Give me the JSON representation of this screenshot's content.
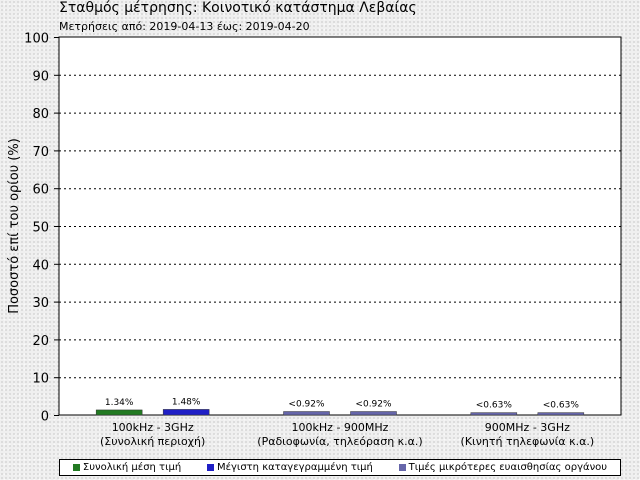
{
  "header": {
    "title": "Σταθμός μέτρησης: Κοινοτικό κατάστημα Λεβαίας",
    "subtitle": "Μετρήσεις από: 2019-04-13 έως: 2019-04-20"
  },
  "legend": {
    "items": [
      {
        "label": "Συνολική μέση τιμή",
        "color": "#227a22"
      },
      {
        "label": "Μέγιστη καταγεγραμμένη τιμή",
        "color": "#1f1fc6"
      },
      {
        "label": "Τιμές μικρότερες ευαισθησίας οργάνου",
        "color": "#6666aa"
      }
    ]
  },
  "chart_data": {
    "type": "bar",
    "title": "",
    "ylabel": "Ποσοστό επί του ορίου (%)",
    "ylim": [
      0,
      100
    ],
    "yticks": [
      0,
      10,
      20,
      30,
      40,
      50,
      60,
      70,
      80,
      90,
      100
    ],
    "grid": true,
    "legend_position": "bottom",
    "groups": [
      {
        "label_line1": "100kHz - 3GHz",
        "label_line2": "(Συνολική περιοχή)",
        "bars": [
          {
            "series": "Συνολική μέση τιμή",
            "value": 1.34,
            "label": "1.34%",
            "color": "#227a22"
          },
          {
            "series": "Μέγιστη καταγεγραμμένη τιμή",
            "value": 1.48,
            "label": "1.48%",
            "color": "#1f1fc6"
          }
        ]
      },
      {
        "label_line1": "100kHz - 900MHz",
        "label_line2": "(Ραδιοφωνία, τηλεόραση κ.α.)",
        "bars": [
          {
            "series": "Τιμές μικρότερες ευαισθησίας οργάνου",
            "value": 0.92,
            "label": "<0.92%",
            "color": "#6666aa"
          },
          {
            "series": "Τιμές μικρότερες ευαισθησίας οργάνου",
            "value": 0.92,
            "label": "<0.92%",
            "color": "#6666aa"
          }
        ]
      },
      {
        "label_line1": "900MHz - 3GHz",
        "label_line2": "(Κινητή τηλεφωνία κ.α.)",
        "bars": [
          {
            "series": "Τιμές μικρότερες ευαισθησίας οργάνου",
            "value": 0.63,
            "label": "<0.63%",
            "color": "#6666aa"
          },
          {
            "series": "Τιμές μικρότερες ευαισθησίας οργάνου",
            "value": 0.63,
            "label": "<0.63%",
            "color": "#6666aa"
          }
        ]
      }
    ]
  }
}
